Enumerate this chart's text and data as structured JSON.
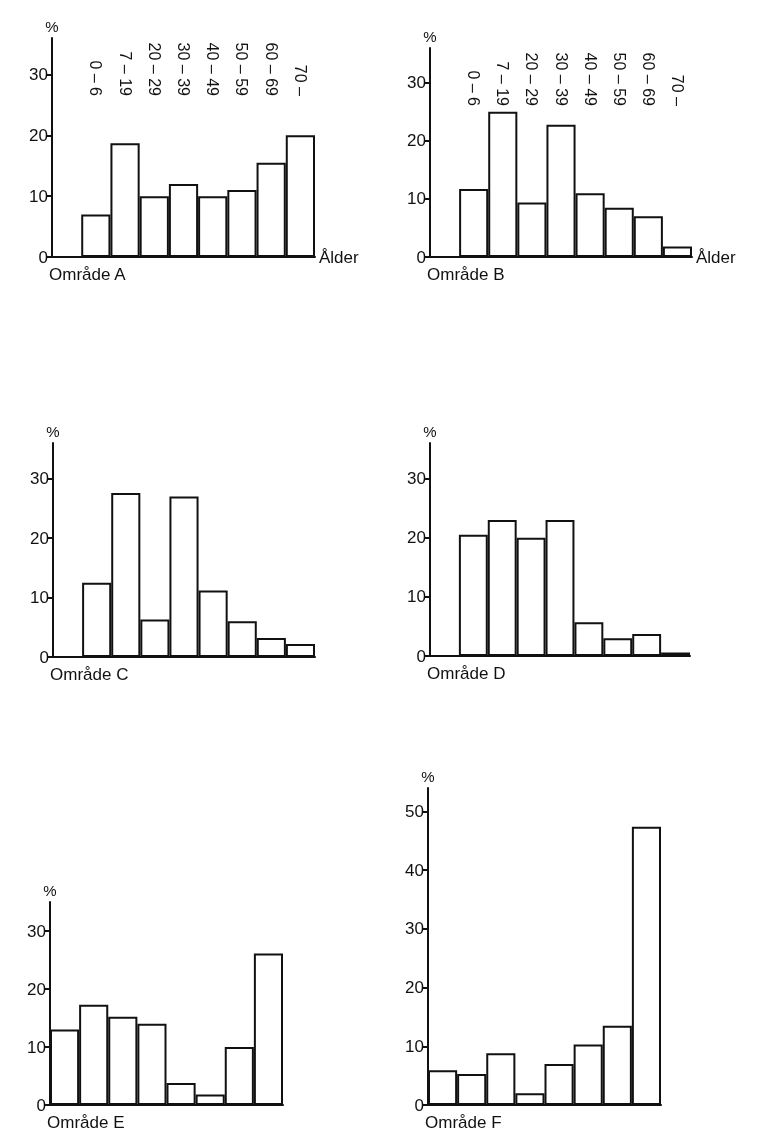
{
  "chart_data": [
    {
      "type": "bar",
      "title": "Område A",
      "xlabel": "Ålder",
      "ylabel": "%",
      "categories": [
        null,
        "0 – 6",
        "7 – 19",
        "20 – 29",
        "30 – 39",
        "40 – 49",
        "50 – 59",
        "60 – 69",
        "70 –"
      ],
      "values": [
        null,
        7,
        18.7,
        10,
        12,
        10,
        11,
        15.5,
        20
      ],
      "color": "#ffffff",
      "ylim": [
        0,
        36
      ],
      "yticks": [
        0,
        10,
        20,
        30
      ]
    },
    {
      "type": "bar",
      "title": "Område B",
      "xlabel": "Ålder",
      "ylabel": "%",
      "categories": [
        null,
        "0 – 6",
        "7 – 19",
        "20 – 29",
        "30 – 39",
        "40 – 49",
        "50 – 59",
        "60 – 69",
        "70 –"
      ],
      "values": [
        null,
        11.7,
        25,
        9.4,
        22.8,
        11,
        8.5,
        7,
        1.8
      ],
      "color": "#ffffff",
      "ylim": [
        0,
        36
      ],
      "yticks": [
        0,
        10,
        20,
        30
      ]
    },
    {
      "type": "bar",
      "title": "Område C",
      "ylabel": "%",
      "categories": [
        null,
        null,
        null,
        null,
        null,
        null,
        null,
        null,
        null
      ],
      "values": [
        null,
        12.5,
        27.6,
        6.3,
        27,
        11.2,
        6,
        3.2,
        2.2
      ],
      "color": "#ffffff",
      "ylim": [
        0,
        36
      ],
      "yticks": [
        0,
        10,
        20,
        30
      ]
    },
    {
      "type": "bar",
      "title": "Område D",
      "ylabel": "%",
      "categories": [
        null,
        null,
        null,
        null,
        null,
        null,
        null,
        null,
        null
      ],
      "values": [
        null,
        20.5,
        23,
        20,
        23,
        5.7,
        3,
        3.7,
        0.6
      ],
      "color": "#ffffff",
      "ylim": [
        0,
        36
      ],
      "yticks": [
        0,
        10,
        20,
        30
      ]
    },
    {
      "type": "bar",
      "title": "Område E",
      "ylabel": "%",
      "categories": [
        null,
        null,
        null,
        null,
        null,
        null,
        null,
        null
      ],
      "values": [
        13,
        17.3,
        15.2,
        14,
        3.8,
        1.8,
        10,
        26.1
      ],
      "color": "#ffffff",
      "ylim": [
        0,
        35
      ],
      "yticks": [
        0,
        10,
        20,
        30
      ]
    },
    {
      "type": "bar",
      "title": "Område F",
      "ylabel": "%",
      "categories": [
        null,
        null,
        null,
        null,
        null,
        null,
        null,
        null
      ],
      "values": [
        5.9,
        5.3,
        8.8,
        2,
        7,
        10.3,
        13.5,
        47.4
      ],
      "color": "#ffffff",
      "ylim": [
        0,
        54
      ],
      "yticks": [
        0,
        10,
        20,
        30,
        40,
        50
      ]
    }
  ]
}
